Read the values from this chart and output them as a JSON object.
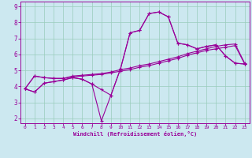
{
  "xlabel": "Windchill (Refroidissement éolien,°C)",
  "bg_color": "#cce8f0",
  "grid_color": "#99ccbb",
  "line_color": "#990099",
  "xlim": [
    -0.5,
    23.5
  ],
  "ylim": [
    1.7,
    9.3
  ],
  "xticks": [
    0,
    1,
    2,
    3,
    4,
    5,
    6,
    7,
    8,
    9,
    10,
    11,
    12,
    13,
    14,
    15,
    16,
    17,
    18,
    19,
    20,
    21,
    22,
    23
  ],
  "yticks": [
    2,
    3,
    4,
    5,
    6,
    7,
    8,
    9
  ],
  "line1": [
    3.85,
    3.65,
    4.2,
    4.3,
    4.4,
    4.55,
    4.45,
    4.15,
    3.8,
    3.45,
    5.1,
    7.35,
    7.5,
    8.55,
    8.65,
    8.35,
    6.7,
    6.6,
    6.35,
    6.5,
    6.6,
    5.9,
    5.45,
    5.4
  ],
  "line2": [
    3.85,
    3.65,
    4.2,
    4.3,
    4.4,
    4.55,
    4.45,
    4.15,
    1.85,
    3.45,
    5.1,
    7.35,
    7.5,
    8.55,
    8.65,
    8.35,
    6.7,
    6.6,
    6.35,
    6.5,
    6.6,
    5.9,
    5.45,
    5.4
  ],
  "line3": [
    3.85,
    4.65,
    4.55,
    4.5,
    4.5,
    4.6,
    4.65,
    4.7,
    4.75,
    4.85,
    4.95,
    5.05,
    5.2,
    5.3,
    5.45,
    5.6,
    5.75,
    5.95,
    6.1,
    6.25,
    6.35,
    6.45,
    6.55,
    5.4
  ],
  "line4": [
    3.85,
    4.65,
    4.55,
    4.5,
    4.5,
    4.65,
    4.7,
    4.75,
    4.8,
    4.9,
    5.05,
    5.15,
    5.3,
    5.4,
    5.55,
    5.7,
    5.85,
    6.05,
    6.2,
    6.35,
    6.5,
    6.6,
    6.65,
    5.45
  ]
}
